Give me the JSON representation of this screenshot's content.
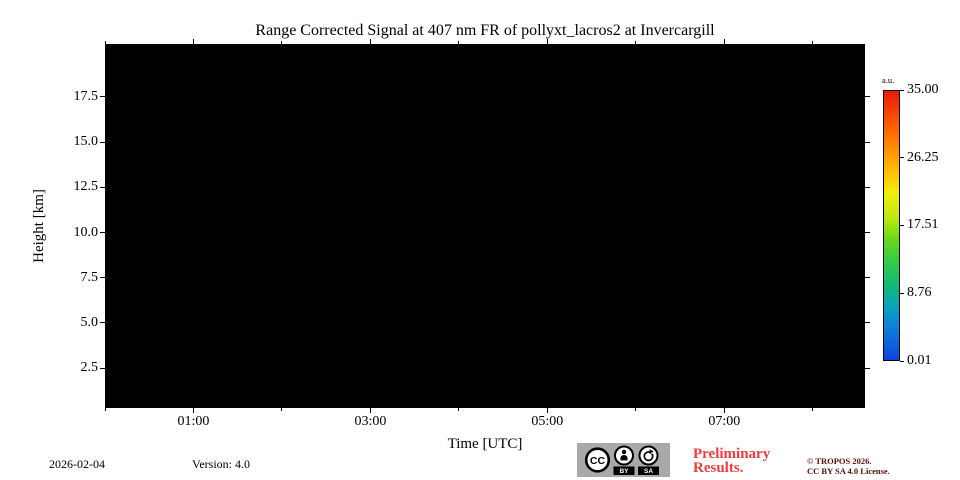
{
  "chart_data": {
    "type": "heatmap",
    "title": "Range Corrected Signal at 407 nm FR of pollyxt_lacros2 at Invercargill",
    "x_axis": {
      "label": "Time [UTC]",
      "range_hours": [
        0,
        8.59
      ],
      "major_ticks": [
        {
          "label": "01:00",
          "hours": 1
        },
        {
          "label": "03:00",
          "hours": 3
        },
        {
          "label": "05:00",
          "hours": 5
        },
        {
          "label": "07:00",
          "hours": 7
        }
      ],
      "minor_ticks_hours": [
        0,
        2,
        4,
        6,
        8
      ]
    },
    "y_axis": {
      "label": "Height [km]",
      "range_km": [
        0.29,
        20.43
      ],
      "ticks_km": [
        2.5,
        5.0,
        7.5,
        10.0,
        12.5,
        15.0,
        17.5
      ]
    },
    "colorbar": {
      "unit": "a.u.",
      "range": [
        0.01,
        35.0
      ],
      "ticks": [
        35.0,
        26.25,
        17.51,
        8.76,
        0.01
      ],
      "colormap": "jet-like (blue to cyan to green to yellow to orange to red, bottom to top)",
      "gradient": [
        {
          "pos": 0,
          "color": "#e8190b"
        },
        {
          "pos": 10,
          "color": "#fa4f03"
        },
        {
          "pos": 20,
          "color": "#ff8400"
        },
        {
          "pos": 30,
          "color": "#ffc003"
        },
        {
          "pos": 38,
          "color": "#f2ee0b"
        },
        {
          "pos": 47,
          "color": "#bfe811"
        },
        {
          "pos": 56,
          "color": "#63d61f"
        },
        {
          "pos": 65,
          "color": "#2cc94e"
        },
        {
          "pos": 73,
          "color": "#10b77f"
        },
        {
          "pos": 81,
          "color": "#0b9fc4"
        },
        {
          "pos": 90,
          "color": "#0f74dc"
        },
        {
          "pos": 100,
          "color": "#0c45e0"
        }
      ]
    },
    "plot_background": "#000000",
    "data_note": "Heatmap area is entirely black - no signal above the colormap minimum is rendered for this time period."
  },
  "footer": {
    "date": "2026-02-04",
    "version": "Version: 4.0",
    "preliminary": "Preliminary Results.",
    "copyright": [
      "© TROPOS 2026.",
      "CC BY SA 4.0 License."
    ],
    "cc_badge": {
      "cc": "CC",
      "by": "BY",
      "sa": "SA"
    }
  },
  "colors": {
    "preliminary_red": "#f03c3c",
    "copyright_maroon": "#571108",
    "badge_gray": "#a9a9a9",
    "plot_black": "#000000"
  }
}
